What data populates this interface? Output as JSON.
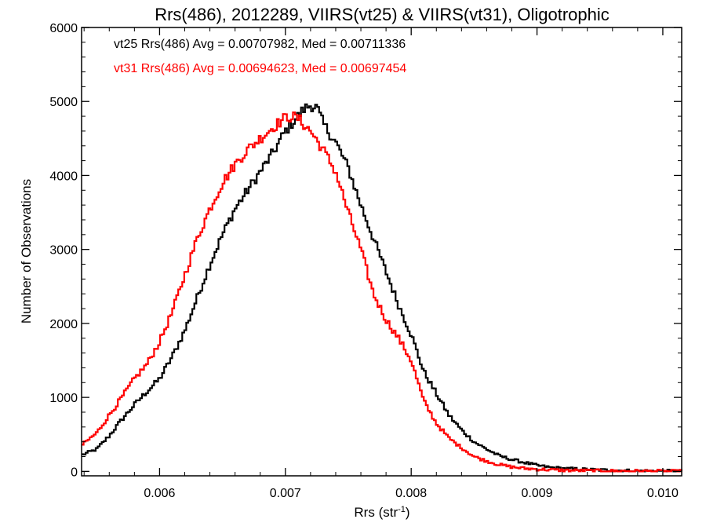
{
  "chart_data": {
    "type": "line",
    "title": "Rrs(486), 2012289, VIIRS(vt25) & VIIRS(vt31), Oligotrophic",
    "xlabel": "Rrs (str",
    "xlabel_sup": "-1",
    "xlabel_end": ")",
    "ylabel": "Number of Observations",
    "xlim": [
      0.00538,
      0.01015
    ],
    "ylim": [
      -60,
      6000
    ],
    "xticks": [
      0.006,
      0.007,
      0.008,
      0.009,
      0.01
    ],
    "xtick_labels": [
      "0.006",
      "0.007",
      "0.008",
      "0.009",
      "0.010"
    ],
    "yticks": [
      0,
      1000,
      2000,
      3000,
      4000,
      5000,
      6000
    ],
    "ytick_labels": [
      "0",
      "1000",
      "2000",
      "3000",
      "4000",
      "5000",
      "6000"
    ],
    "grid": false,
    "legend_position": "top-left",
    "series": [
      {
        "legend": "vt25 Rrs(486) Avg = 0.00707982, Med = 0.00711336",
        "color": "#000000",
        "x": [
          0.00538,
          0.0055,
          0.0056,
          0.0057,
          0.0058,
          0.0059,
          0.006,
          0.0061,
          0.0062,
          0.0063,
          0.0064,
          0.0065,
          0.0066,
          0.0067,
          0.0068,
          0.0069,
          0.007,
          0.0071,
          0.00715,
          0.0072,
          0.00725,
          0.0073,
          0.0074,
          0.0075,
          0.0076,
          0.0077,
          0.0078,
          0.0079,
          0.008,
          0.0081,
          0.0082,
          0.0083,
          0.0084,
          0.0085,
          0.0086,
          0.0087,
          0.0088,
          0.0089,
          0.009,
          0.0091,
          0.0092,
          0.0094,
          0.0096,
          0.0098,
          0.01,
          0.01015
        ],
        "y": [
          220,
          300,
          480,
          700,
          900,
          1080,
          1250,
          1550,
          1900,
          2350,
          2800,
          3200,
          3550,
          3800,
          4050,
          4300,
          4600,
          4800,
          4900,
          4950,
          4920,
          4700,
          4450,
          4100,
          3600,
          3150,
          2700,
          2250,
          1850,
          1350,
          1050,
          760,
          560,
          400,
          300,
          210,
          160,
          120,
          80,
          55,
          40,
          25,
          15,
          8,
          5,
          3
        ]
      },
      {
        "legend": "vt31 Rrs(486) Avg = 0.00694623, Med = 0.00697454",
        "color": "#ff0000",
        "x": [
          0.00538,
          0.0055,
          0.0056,
          0.0057,
          0.0058,
          0.0059,
          0.006,
          0.0061,
          0.0062,
          0.0063,
          0.0064,
          0.0065,
          0.0066,
          0.0067,
          0.0068,
          0.0069,
          0.007,
          0.00705,
          0.0071,
          0.0072,
          0.0073,
          0.0074,
          0.0075,
          0.0076,
          0.0077,
          0.0078,
          0.0079,
          0.008,
          0.0081,
          0.0082,
          0.0083,
          0.0084,
          0.0085,
          0.0086,
          0.0087,
          0.0088,
          0.0089,
          0.009,
          0.0091,
          0.0092,
          0.0094,
          0.0096,
          0.0098,
          0.01,
          0.01015
        ],
        "y": [
          350,
          520,
          760,
          1000,
          1250,
          1450,
          1750,
          2150,
          2650,
          3150,
          3550,
          3900,
          4150,
          4350,
          4500,
          4650,
          4780,
          4800,
          4770,
          4600,
          4350,
          4050,
          3500,
          3000,
          2400,
          2050,
          1800,
          1500,
          950,
          650,
          450,
          320,
          200,
          140,
          90,
          60,
          40,
          30,
          22,
          15,
          10,
          6,
          4,
          2,
          1
        ]
      }
    ]
  }
}
